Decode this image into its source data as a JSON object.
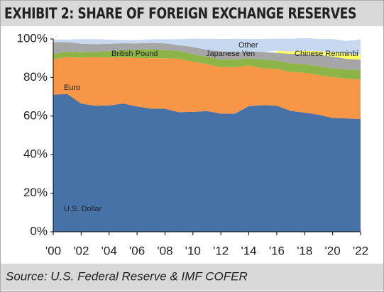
{
  "chart_data": {
    "type": "stacked-area",
    "title": "EXHIBIT 2: SHARE OF FOREIGN EXCHANGE RESERVES",
    "source": "Source: U.S. Federal Reserve & IMF COFER",
    "x": [
      2000,
      2001,
      2002,
      2003,
      2004,
      2005,
      2006,
      2007,
      2008,
      2009,
      2010,
      2011,
      2012,
      2013,
      2014,
      2015,
      2016,
      2017,
      2018,
      2019,
      2020,
      2021,
      2022
    ],
    "xlim": [
      2000,
      2022
    ],
    "xticks": [
      {
        "value": 2000,
        "label": "'00"
      },
      {
        "value": 2002,
        "label": "'02"
      },
      {
        "value": 2004,
        "label": "'04"
      },
      {
        "value": 2006,
        "label": "'06"
      },
      {
        "value": 2008,
        "label": "'08"
      },
      {
        "value": 2010,
        "label": "'10"
      },
      {
        "value": 2012,
        "label": "'12"
      },
      {
        "value": 2014,
        "label": "'14"
      },
      {
        "value": 2016,
        "label": "'16"
      },
      {
        "value": 2018,
        "label": "'18"
      },
      {
        "value": 2020,
        "label": "'20"
      },
      {
        "value": 2022,
        "label": "'22"
      }
    ],
    "ylim": [
      0,
      100
    ],
    "yticks": [
      {
        "value": 0,
        "label": "0%"
      },
      {
        "value": 20,
        "label": "20%"
      },
      {
        "value": 40,
        "label": "40%"
      },
      {
        "value": 60,
        "label": "60%"
      },
      {
        "value": 80,
        "label": "80%"
      },
      {
        "value": 100,
        "label": "100%"
      }
    ],
    "series": [
      {
        "name": "U.S. Dollar",
        "color": "#4672a8",
        "values": [
          71.1,
          71.5,
          66.5,
          65.4,
          65.5,
          66.5,
          65.0,
          63.9,
          63.8,
          62.0,
          62.2,
          62.6,
          61.3,
          61.2,
          65.1,
          65.7,
          65.4,
          62.7,
          61.8,
          60.7,
          59.0,
          58.8,
          58.4
        ]
      },
      {
        "name": "Euro",
        "color": "#f79646",
        "values": [
          18.3,
          19.2,
          23.8,
          25.2,
          24.8,
          24.1,
          25.1,
          26.1,
          26.2,
          27.7,
          26.0,
          24.4,
          24.1,
          24.2,
          21.2,
          19.1,
          19.1,
          20.2,
          20.7,
          20.6,
          21.2,
          20.6,
          20.5
        ]
      },
      {
        "name": "British Pound",
        "color": "#8db446",
        "values": [
          2.8,
          2.7,
          2.8,
          2.8,
          3.4,
          3.6,
          4.5,
          4.8,
          4.2,
          4.2,
          3.9,
          3.8,
          4.0,
          4.0,
          3.7,
          4.7,
          4.3,
          4.5,
          4.4,
          4.6,
          4.7,
          4.8,
          4.9
        ]
      },
      {
        "name": "Japanese Yen",
        "color": "#a6a6a6",
        "values": [
          6.1,
          5.0,
          4.4,
          3.9,
          3.8,
          3.6,
          3.1,
          3.2,
          3.5,
          2.9,
          3.7,
          3.6,
          4.1,
          3.8,
          3.5,
          3.8,
          4.0,
          4.9,
          5.2,
          5.9,
          6.0,
          5.5,
          5.5
        ]
      },
      {
        "name": "Chinese Renminbi",
        "color": "#ffff66",
        "values": [
          null,
          null,
          null,
          null,
          null,
          null,
          null,
          null,
          null,
          null,
          null,
          null,
          null,
          null,
          null,
          null,
          1.1,
          1.2,
          1.9,
          1.9,
          2.3,
          2.8,
          2.6
        ]
      },
      {
        "name": "Other",
        "color": "#c6d9f1",
        "values": [
          1.5,
          1.3,
          2.4,
          2.6,
          2.2,
          1.7,
          1.8,
          1.8,
          2.1,
          3.1,
          4.4,
          5.7,
          6.5,
          6.9,
          6.5,
          6.7,
          6.3,
          6.6,
          6.5,
          6.3,
          6.8,
          6.5,
          7.9
        ]
      }
    ]
  }
}
